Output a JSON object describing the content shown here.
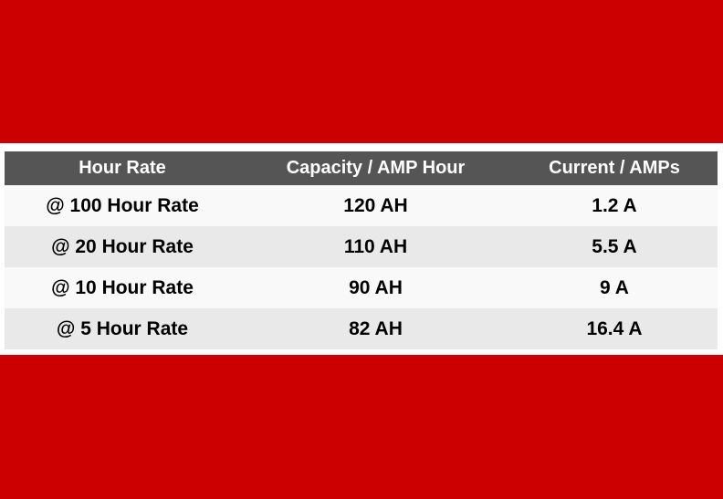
{
  "colors": {
    "background_red": "#cc0000",
    "panel_white": "#ffffff",
    "header_gray": "#555555",
    "header_text": "#ffffff",
    "row_light": "#f9f9f9",
    "row_alt": "#e9e9e9"
  },
  "chart_data": {
    "type": "table",
    "columns": [
      "Hour Rate",
      "Capacity / AMP Hour",
      "Current / AMPs"
    ],
    "rows": [
      [
        "@ 100 Hour Rate",
        "120 AH",
        "1.2 A"
      ],
      [
        "@ 20 Hour Rate",
        "110 AH",
        "5.5 A"
      ],
      [
        "@ 10 Hour Rate",
        "90 AH",
        "9 A"
      ],
      [
        "@ 5 Hour Rate",
        "82 AH",
        "16.4 A"
      ]
    ]
  }
}
